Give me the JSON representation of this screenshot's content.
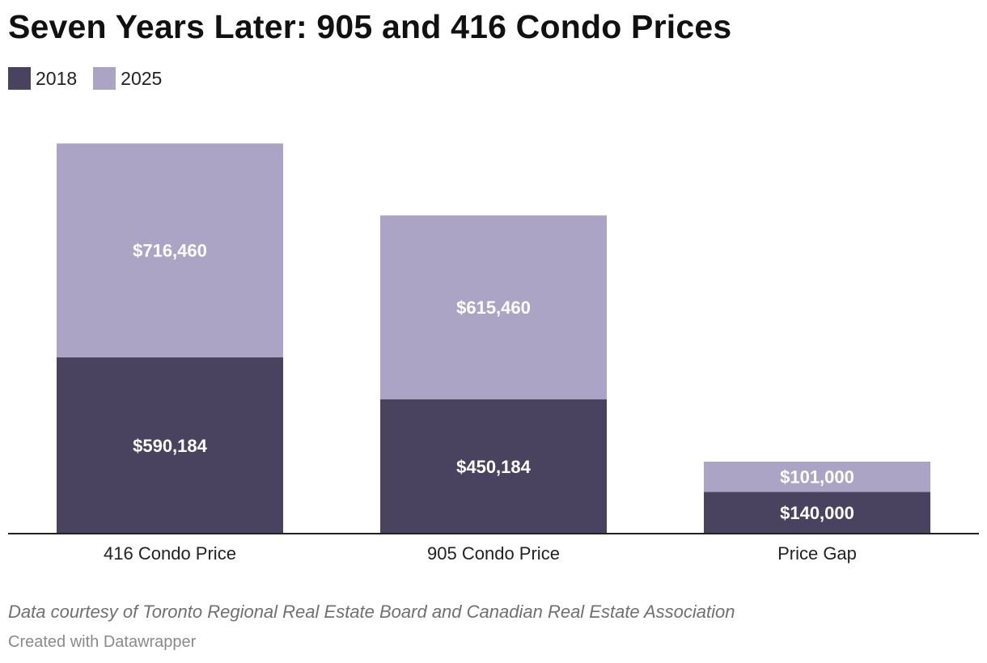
{
  "chart_data": {
    "type": "bar",
    "stacked": true,
    "title": "Seven Years Later: 905 and 416 Condo Prices",
    "categories": [
      "416 Condo Price",
      "905 Condo Price",
      "Price Gap"
    ],
    "series": [
      {
        "name": "2018",
        "color": "#4a4360",
        "values": [
          590184,
          450184,
          140000
        ],
        "labels": [
          "$590,184",
          "$450,184",
          "$140,000"
        ]
      },
      {
        "name": "2025",
        "color": "#aca4c5",
        "values": [
          716460,
          615460,
          101000
        ],
        "labels": [
          "$716,460",
          "$615,460",
          "$101,000"
        ]
      }
    ],
    "xlabel": "",
    "ylabel": "",
    "ylim": [
      0,
      1370000
    ],
    "grid": false,
    "legend": "top-left",
    "source": "Data courtesy of Toronto Regional Real Estate Board and Canadian Real Estate Association",
    "credit": "Created with Datawrapper"
  }
}
